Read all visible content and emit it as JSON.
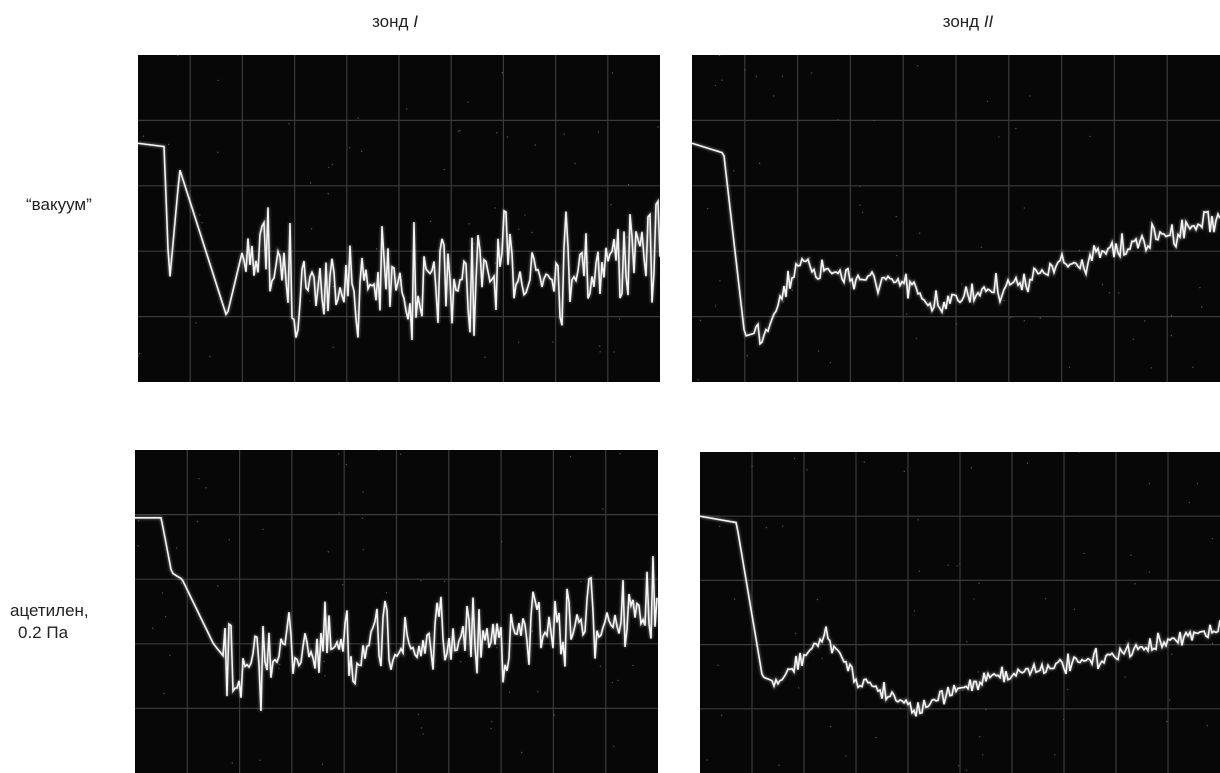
{
  "columns": [
    {
      "text": "зонд",
      "numeral": "I"
    },
    {
      "text": "зонд",
      "numeral": "II"
    }
  ],
  "rows": [
    {
      "lines": [
        "“вакуум”"
      ]
    },
    {
      "lines": [
        "ацетилен,",
        "0.2 Па"
      ]
    }
  ]
}
